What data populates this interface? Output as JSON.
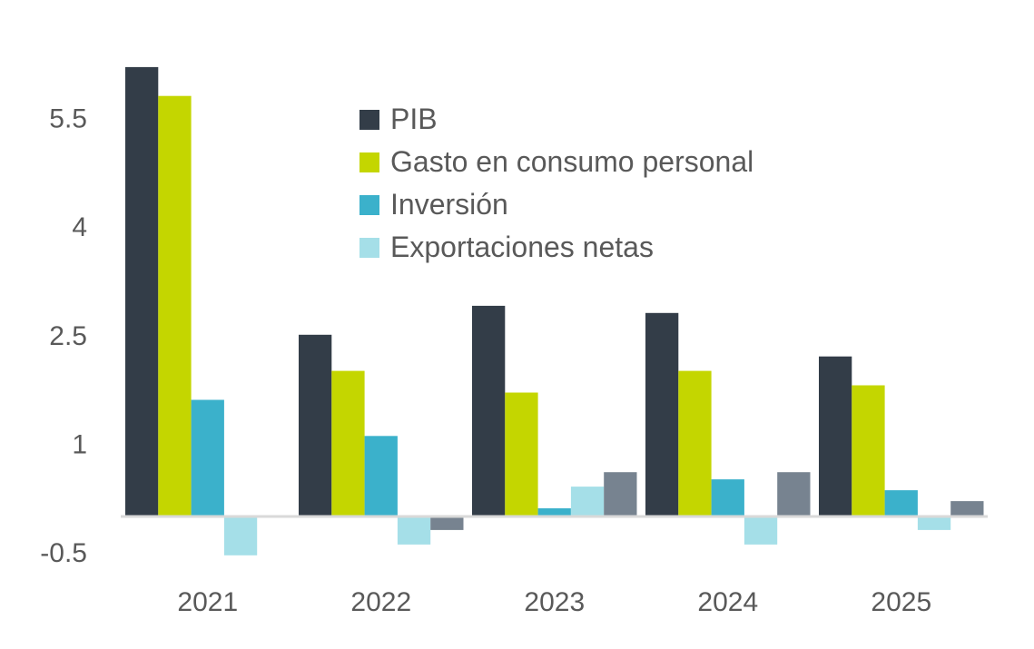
{
  "chart_data": {
    "type": "bar",
    "title": "",
    "xlabel": "",
    "ylabel": "",
    "categories": [
      "2021",
      "2022",
      "2023",
      "2024",
      "2025"
    ],
    "yticks": [
      -0.5,
      1,
      2.5,
      4,
      5.5
    ],
    "ytick_labels": [
      "-0.5",
      "1",
      "2.5",
      "4",
      "5.5"
    ],
    "ylim": [
      -0.75,
      6.4
    ],
    "grid": false,
    "legend_position": "top-center",
    "series": [
      {
        "name": "PIB",
        "color": "#333d48",
        "in_legend": true,
        "values": [
          6.2,
          2.5,
          2.9,
          2.8,
          2.2
        ]
      },
      {
        "name": "Gasto en consumo personal",
        "color": "#c4d600",
        "in_legend": true,
        "values": [
          5.8,
          2.0,
          1.7,
          2.0,
          1.8
        ]
      },
      {
        "name": "Inversión",
        "color": "#3bb1cb",
        "in_legend": true,
        "values": [
          1.6,
          1.1,
          0.1,
          0.5,
          0.35
        ]
      },
      {
        "name": "Exportaciones netas",
        "color": "#a5dfe8",
        "in_legend": true,
        "values": [
          -0.55,
          -0.4,
          0.4,
          -0.4,
          -0.2
        ]
      },
      {
        "name": "",
        "color": "#778390",
        "in_legend": false,
        "values": [
          0,
          -0.2,
          0.6,
          0.6,
          0.2
        ]
      }
    ]
  }
}
